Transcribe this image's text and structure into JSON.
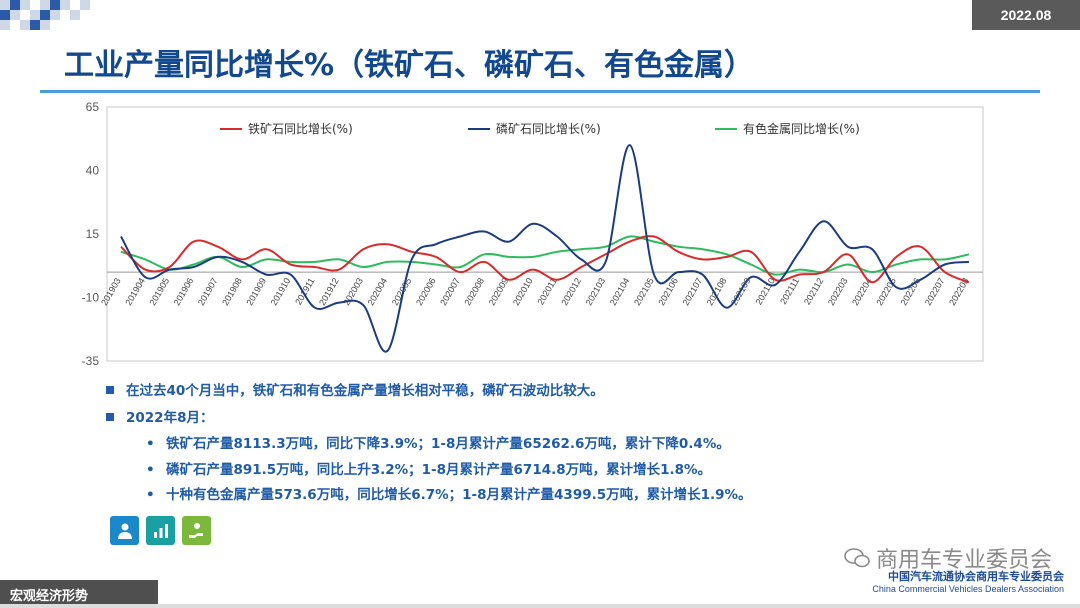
{
  "header": {
    "date": "2022.08",
    "title": "工业产量同比增长%（铁矿石、磷矿石、有色金属）"
  },
  "chart_data": {
    "type": "line",
    "title": "",
    "ylim": [
      -35,
      65
    ],
    "yticks": [
      -35,
      -10,
      15,
      40,
      65
    ],
    "x": [
      "201903",
      "201904",
      "201905",
      "201906",
      "201907",
      "201908",
      "201909",
      "201910",
      "201911",
      "201912",
      "202003",
      "202004",
      "202005",
      "202006",
      "202007",
      "202008",
      "202009",
      "202010",
      "202011",
      "202012",
      "202103",
      "202104",
      "202105",
      "202106",
      "202107",
      "202108",
      "202109",
      "202110",
      "202111",
      "202112",
      "202203",
      "202204",
      "202205",
      "202206",
      "202207",
      "202208"
    ],
    "grid": "horizontal-top",
    "legend": "top",
    "series": [
      {
        "name": "铁矿石同比增长(%)",
        "color": "#d92b2b",
        "values": [
          10,
          1,
          2,
          12,
          10,
          5,
          9,
          3,
          2,
          1,
          9,
          11,
          8,
          6,
          0,
          4,
          -3,
          1,
          -3,
          2,
          7,
          12,
          14,
          8,
          5,
          6,
          8,
          -3,
          -1,
          0,
          7,
          -4,
          6,
          10,
          0,
          -4
        ]
      },
      {
        "name": "磷矿石同比增长(%)",
        "color": "#1b3c83",
        "values": [
          14,
          -2,
          1,
          2,
          6,
          4,
          -1,
          -1,
          -14,
          -12,
          -13,
          -31,
          5,
          11,
          14,
          16,
          12,
          19,
          14,
          5,
          4,
          50,
          -1,
          0,
          -1,
          -14,
          -2,
          -5,
          8,
          20,
          10,
          9,
          -6,
          -3,
          3,
          4
        ]
      },
      {
        "name": "有色金属同比增长(%)",
        "color": "#2fba5e",
        "values": [
          8,
          5,
          1,
          3,
          6,
          2,
          5,
          4,
          4,
          5,
          2,
          4,
          4,
          3,
          2,
          7,
          6,
          6,
          8,
          9,
          10,
          14,
          12,
          10,
          9,
          7,
          3,
          -1,
          1,
          0,
          3,
          0,
          3,
          5,
          5,
          7
        ]
      }
    ]
  },
  "bullets": {
    "b1": "在过去40个月当中，铁矿石和有色金属产量增长相对平稳，磷矿石波动比较大。",
    "b2": "2022年8月：",
    "s1": "铁矿石产量8113.3万吨，同比下降3.9%；1-8月累计产量65262.6万吨，累计下降0.4%。",
    "s2": "磷矿石产量891.5万吨，同比上升3.2%；1-8月累计产量6714.8万吨，累计增长1.8%。",
    "s3": "十种有色金属产量573.6万吨，同比增长6.7%；1-8月累计产量4399.5万吨，累计增长1.9%。",
    "marker": "•"
  },
  "icons": [
    {
      "name": "person-icon",
      "color": "#1a88c9"
    },
    {
      "name": "bars-icon",
      "color": "#1aa0a0"
    },
    {
      "name": "hand-coin-icon",
      "color": "#7cb83b"
    }
  ],
  "branding": {
    "wechat": "商用车专业委员会",
    "org_cn": "中国汽车流通协会商用车专业委员会",
    "org_en": "China Commercial Vehicles Dealers Association"
  },
  "footer": {
    "section": "宏观经济形势"
  }
}
